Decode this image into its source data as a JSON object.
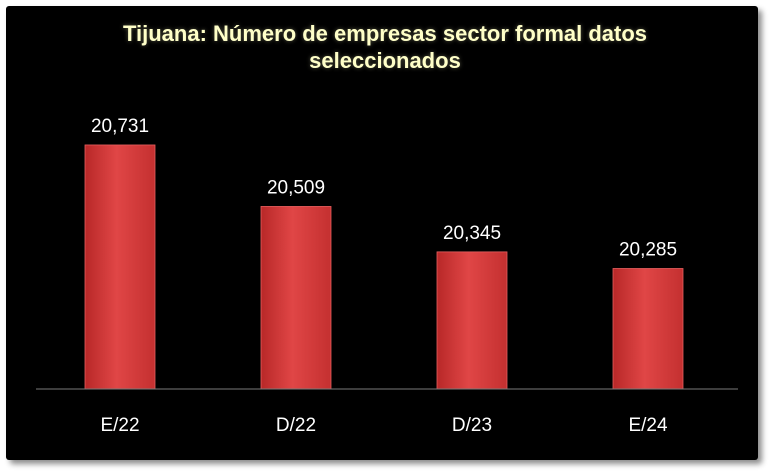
{
  "chart_data": {
    "type": "bar",
    "title": "Tijuana: Número de empresas sector formal datos seleccionados",
    "title_lines": [
      "Tijuana: Número de empresas sector formal datos",
      "seleccionados"
    ],
    "categories": [
      "E/22",
      "D/22",
      "D/23",
      "E/24"
    ],
    "values": [
      20731,
      20509,
      20345,
      20285
    ],
    "value_labels": [
      "20,731",
      "20,509",
      "20,345",
      "20,285"
    ],
    "ylim": [
      19850,
      20850
    ],
    "grid": false,
    "legend": "none",
    "bar_color": "#d63a3a",
    "background_color": "#000000",
    "title_color": "#ffffc8"
  }
}
